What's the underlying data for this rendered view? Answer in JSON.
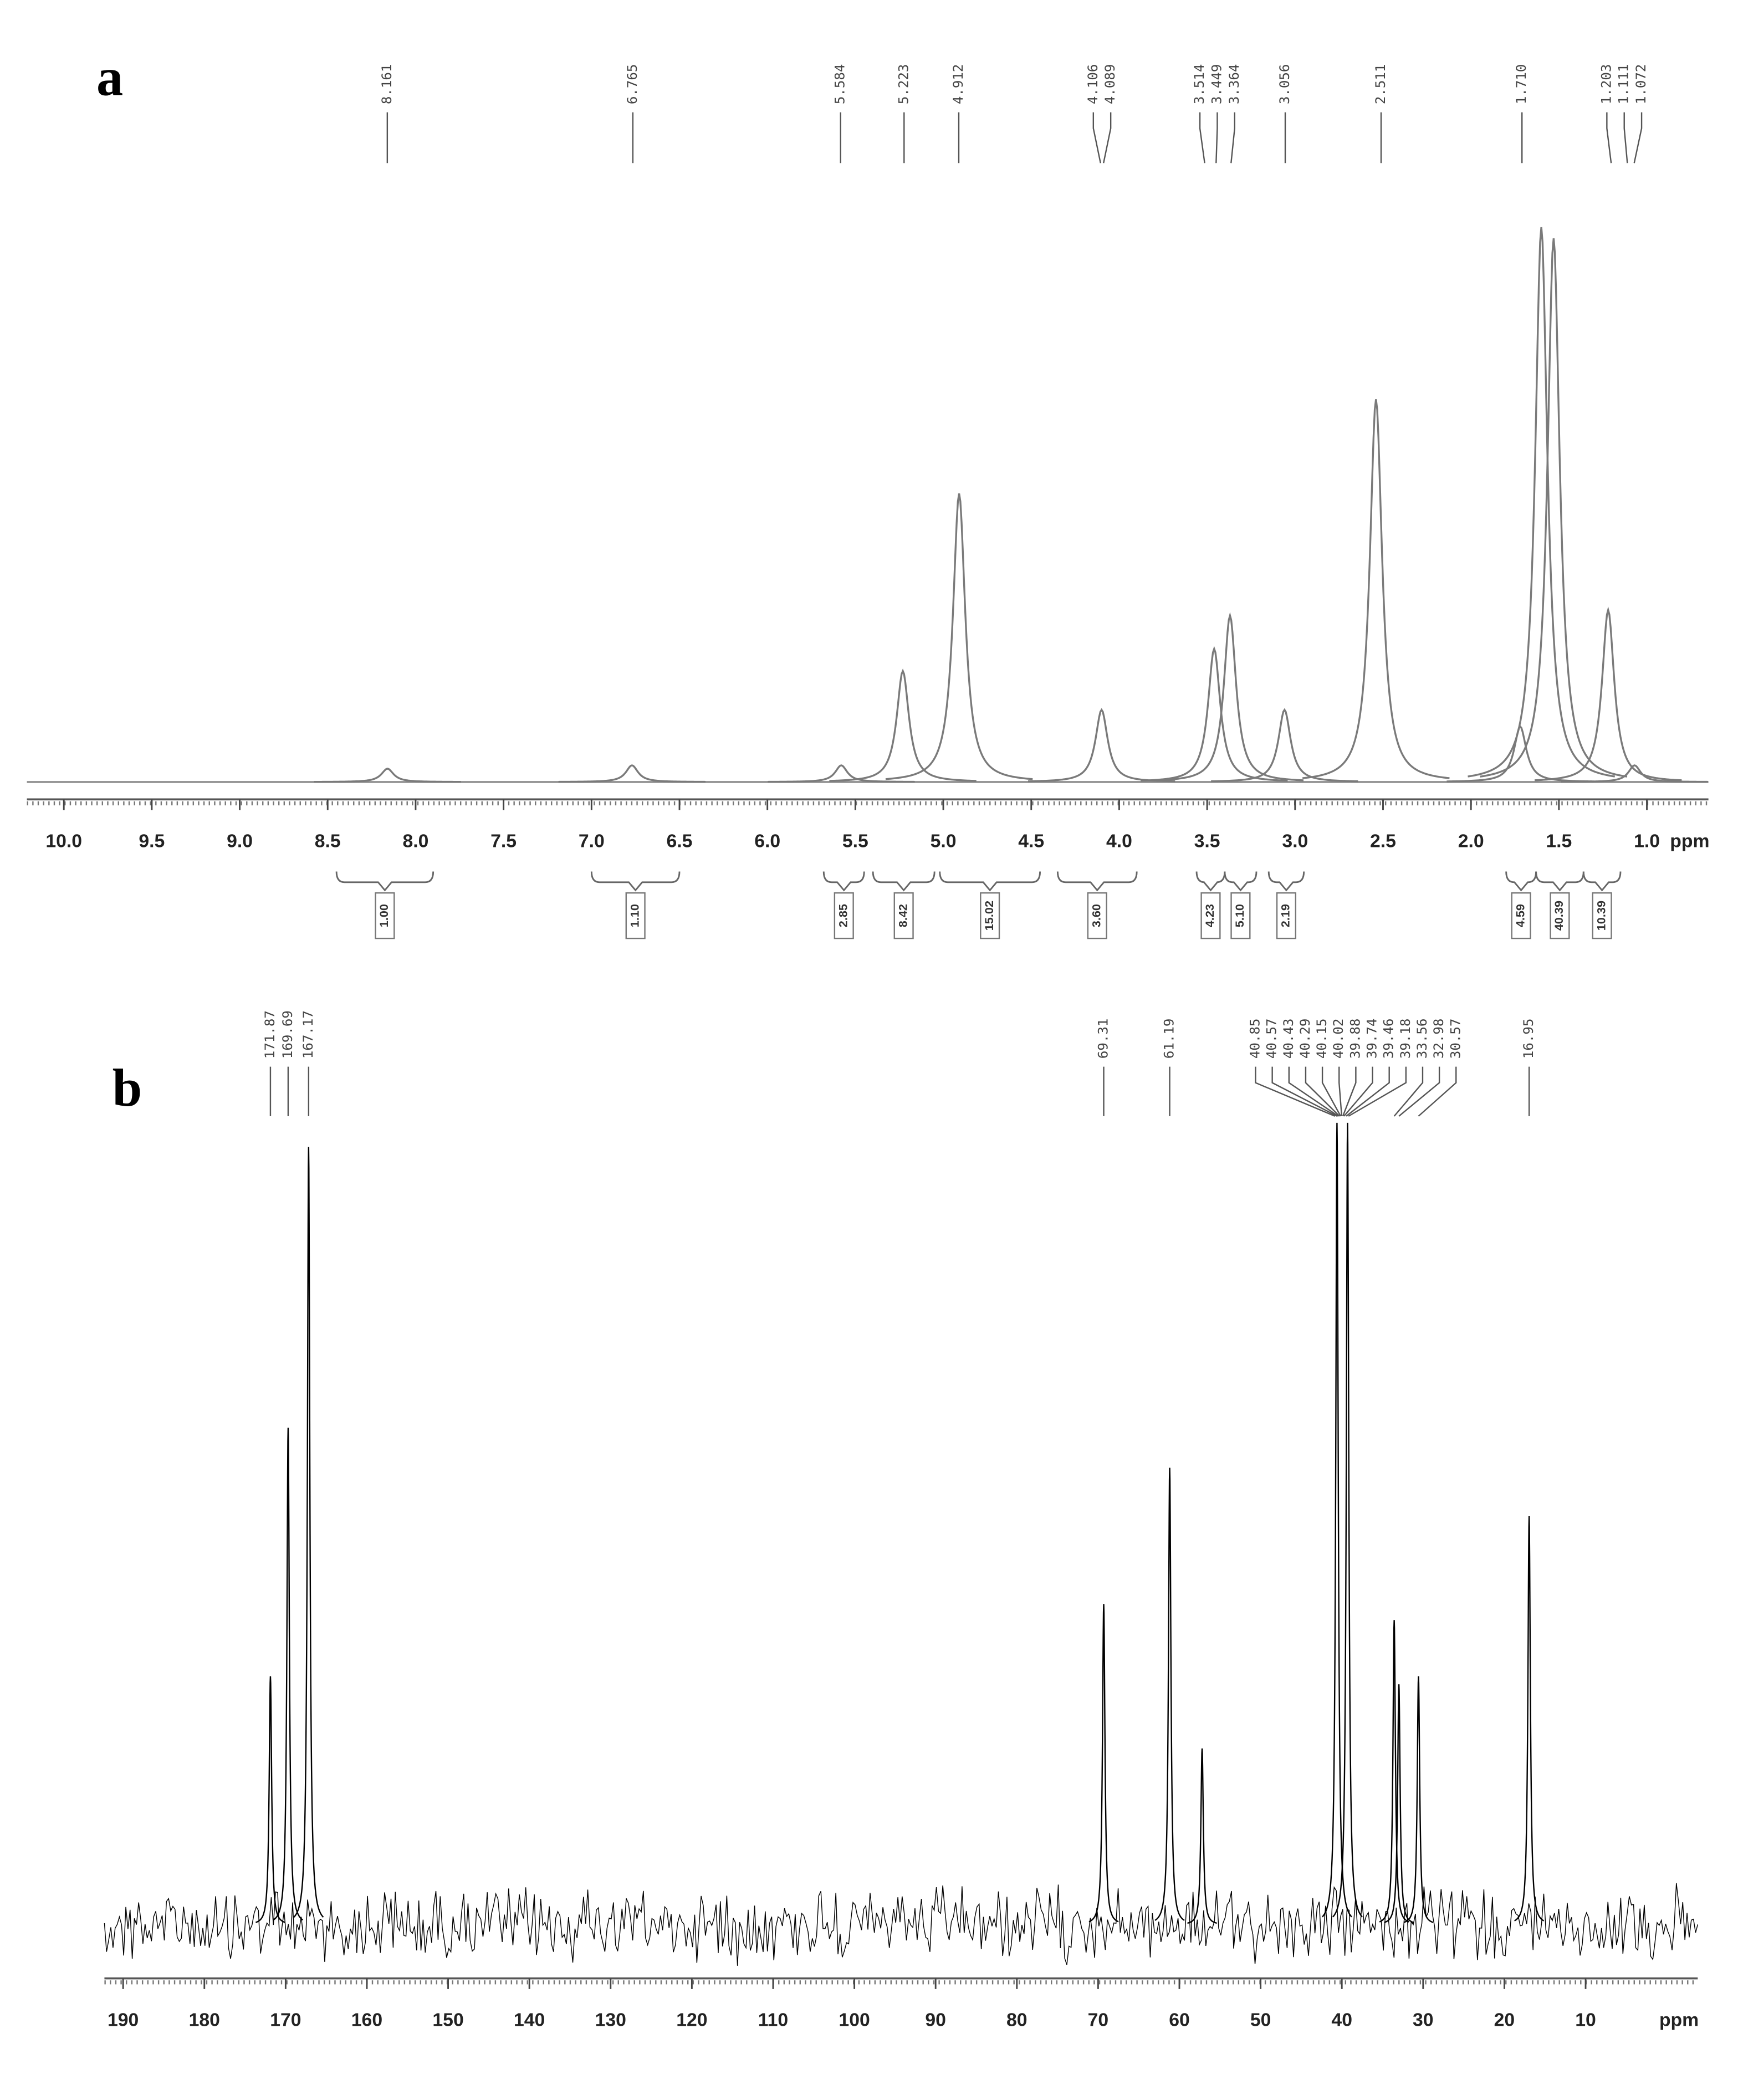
{
  "chart_data": [
    {
      "type": "spectrum",
      "label": "a",
      "xlabel": "ppm",
      "xlim": [
        10.21,
        0.65
      ],
      "xticks": [
        {
          "value": 10,
          "label": "10.0"
        },
        9.5,
        {
          "value": 9,
          "label": "9.0"
        },
        8.5,
        {
          "value": 8,
          "label": "8.0"
        },
        7.5,
        {
          "value": 7,
          "label": "7.0"
        },
        6.5,
        {
          "value": 6,
          "label": "6.0"
        },
        5.5,
        {
          "value": 5,
          "label": "5.0"
        },
        4.5,
        {
          "value": 4,
          "label": "4.0"
        },
        3.5,
        {
          "value": 3,
          "label": "3.0"
        },
        2.5,
        {
          "value": 2,
          "label": "2.0"
        },
        1.5,
        {
          "value": 1,
          "label": "1.0"
        }
      ],
      "series": [
        {
          "color": "#7a7a7a",
          "x": [
            8.16,
            6.77,
            5.58,
            5.23,
            4.91,
            4.1,
            3.46,
            3.37,
            3.06,
            2.54,
            1.72,
            1.6,
            1.53,
            1.22,
            1.07
          ],
          "values": [
            2.4,
            3,
            3,
            20,
            52,
            13,
            24,
            30,
            13,
            69,
            10,
            100,
            98,
            31,
            3
          ]
        }
      ],
      "peak_labels": [
        8.161,
        6.765,
        5.584,
        5.223,
        4.912,
        4.106,
        4.089,
        3.514,
        3.449,
        3.364,
        3.056,
        2.511,
        {
          "value": 1.71,
          "label": "1.710"
        },
        1.203,
        1.111,
        1.072
      ],
      "integrals": [
        {
          "range": [
            8.45,
            7.9
          ],
          "value": 1,
          "label": "1.00"
        },
        {
          "range": [
            7.0,
            6.5
          ],
          "value": 1.1,
          "label": "1.10"
        },
        {
          "range": [
            5.68,
            5.45
          ],
          "value": 2.85,
          "label": "2.85"
        },
        {
          "range": [
            5.4,
            5.05
          ],
          "value": 8.42,
          "label": "8.42"
        },
        {
          "range": [
            5.02,
            4.45
          ],
          "value": 15.02,
          "label": "15.02"
        },
        {
          "range": [
            4.35,
            3.9
          ],
          "value": 3.6,
          "label": "3.60"
        },
        {
          "range": [
            3.56,
            3.4
          ],
          "value": 4.23,
          "label": "4.23"
        },
        {
          "range": [
            3.4,
            3.22
          ],
          "value": 5.1,
          "label": "5.10"
        },
        {
          "range": [
            3.15,
            2.95
          ],
          "value": 2.19,
          "label": "2.19"
        },
        {
          "range": [
            1.8,
            1.63
          ],
          "value": 4.59,
          "label": "4.59"
        },
        {
          "range": [
            1.63,
            1.36
          ],
          "value": 40.39,
          "label": "40.39"
        },
        {
          "range": [
            1.36,
            1.15
          ],
          "value": 10.39,
          "label": "10.39"
        }
      ]
    },
    {
      "type": "spectrum",
      "label": "b",
      "xlabel": "ppm",
      "xlim": [
        192.3,
        -3.8
      ],
      "xticks": [
        190,
        180,
        170,
        160,
        150,
        140,
        130,
        120,
        110,
        100,
        90,
        80,
        70,
        60,
        50,
        40,
        30,
        20,
        10
      ],
      "series": [
        {
          "color": "#000000",
          "x": [
            171.87,
            169.69,
            167.17,
            69.31,
            61.19,
            57.2,
            40.6,
            39.3,
            33.56,
            32.98,
            30.57,
            16.95
          ],
          "values": [
            31,
            62,
            97,
            40,
            57,
            22,
            100,
            100,
            38,
            30,
            31,
            51
          ]
        }
      ],
      "peak_labels": [
        171.87,
        169.69,
        167.17,
        69.31,
        61.19,
        40.85,
        40.57,
        40.43,
        40.29,
        40.15,
        40.02,
        39.88,
        39.74,
        39.46,
        39.18,
        33.56,
        32.98,
        30.57,
        16.95
      ]
    }
  ]
}
